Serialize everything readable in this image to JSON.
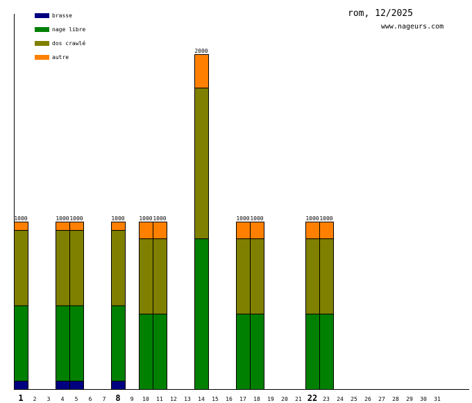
{
  "chart_data": {
    "type": "bar",
    "stacked": true,
    "title": "rom, 12/2025",
    "subtitle": "www.nageurs.com",
    "legend_position": "top-left",
    "ylim": [
      0,
      2250
    ],
    "categories": [
      "1",
      "2",
      "3",
      "4",
      "5",
      "6",
      "7",
      "8",
      "9",
      "10",
      "11",
      "12",
      "13",
      "14",
      "15",
      "16",
      "17",
      "18",
      "19",
      "20",
      "21",
      "22",
      "23",
      "24",
      "25",
      "26",
      "27",
      "28",
      "29",
      "30",
      "31"
    ],
    "bold_categories": [
      "1",
      "8",
      "22"
    ],
    "series": [
      {
        "name": "brasse",
        "color": "#000080",
        "values": [
          50,
          0,
          0,
          50,
          50,
          0,
          0,
          50,
          0,
          0,
          0,
          0,
          0,
          0,
          0,
          0,
          0,
          0,
          0,
          0,
          0,
          0,
          0,
          0,
          0,
          0,
          0,
          0,
          0,
          0,
          0
        ]
      },
      {
        "name": "nage libre",
        "color": "#008000",
        "values": [
          450,
          0,
          0,
          450,
          450,
          0,
          0,
          450,
          0,
          450,
          450,
          0,
          0,
          900,
          0,
          0,
          450,
          450,
          0,
          0,
          0,
          450,
          450,
          0,
          0,
          0,
          0,
          0,
          0,
          0,
          0
        ]
      },
      {
        "name": "dos crawlé",
        "color": "#808000",
        "values": [
          450,
          0,
          0,
          450,
          450,
          0,
          0,
          450,
          0,
          450,
          450,
          0,
          0,
          900,
          0,
          0,
          450,
          450,
          0,
          0,
          0,
          450,
          450,
          0,
          0,
          0,
          0,
          0,
          0,
          0,
          0
        ]
      },
      {
        "name": "autre",
        "color": "#ff8000",
        "values": [
          50,
          0,
          0,
          50,
          50,
          0,
          0,
          50,
          0,
          100,
          100,
          0,
          0,
          200,
          0,
          0,
          100,
          100,
          0,
          0,
          0,
          100,
          100,
          0,
          0,
          0,
          0,
          0,
          0,
          0,
          0
        ]
      }
    ],
    "totals": [
      "1000",
      "",
      "",
      "1000",
      "1000",
      "",
      "",
      "1000",
      "",
      "1000",
      "1000",
      "",
      "",
      "2000",
      "",
      "",
      "1000",
      "1000",
      "",
      "",
      "",
      "1000",
      "1000",
      "",
      "",
      "",
      "",
      "",
      "",
      "",
      ""
    ]
  }
}
